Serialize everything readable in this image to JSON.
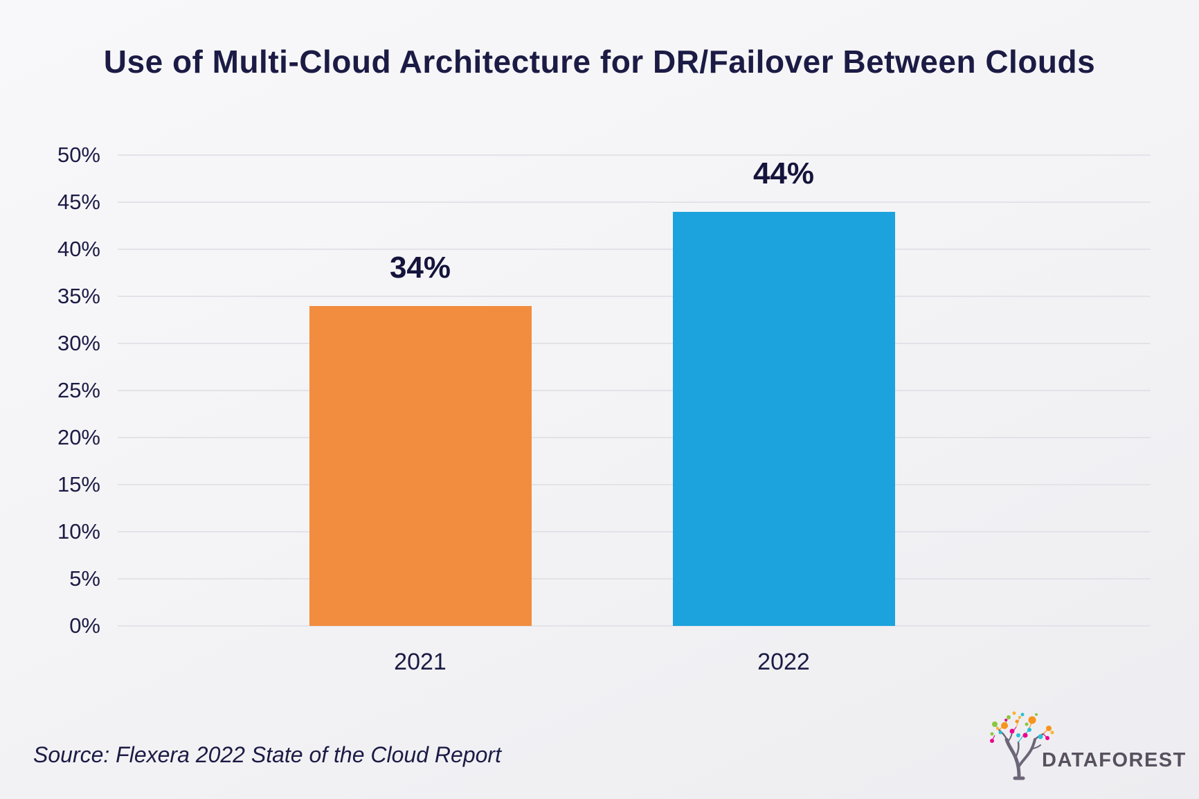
{
  "title": "Use of Multi-Cloud Architecture for DR/Failover Between Clouds",
  "source": "Source: Flexera 2022 State of the Cloud Report",
  "logo": {
    "brand": "DATAFOREST"
  },
  "colors": {
    "navy_text": "#1b1b45",
    "bar_2021_orange": "#F28C3E",
    "bar_2022_blue": "#1CA3DE",
    "gridline": "#e2e2e9",
    "logo_text": "#57515f",
    "background": "#f3f3f6"
  },
  "chart_data": {
    "type": "bar",
    "title": "Use of Multi-Cloud Architecture for DR/Failover Between Clouds",
    "categories": [
      "2021",
      "2022"
    ],
    "values": [
      34,
      44
    ],
    "value_labels": [
      "34%",
      "44%"
    ],
    "bar_colors": [
      "#F28C3E",
      "#1CA3DE"
    ],
    "xlabel": "",
    "ylabel": "",
    "ylim": [
      0,
      50
    ],
    "ytick_step": 5,
    "ytick_labels": [
      "0%",
      "5%",
      "10%",
      "15%",
      "20%",
      "25%",
      "30%",
      "35%",
      "40%",
      "45%",
      "50%"
    ],
    "grid": true,
    "legend": false,
    "source": "Source: Flexera 2022 State of the Cloud Report"
  }
}
